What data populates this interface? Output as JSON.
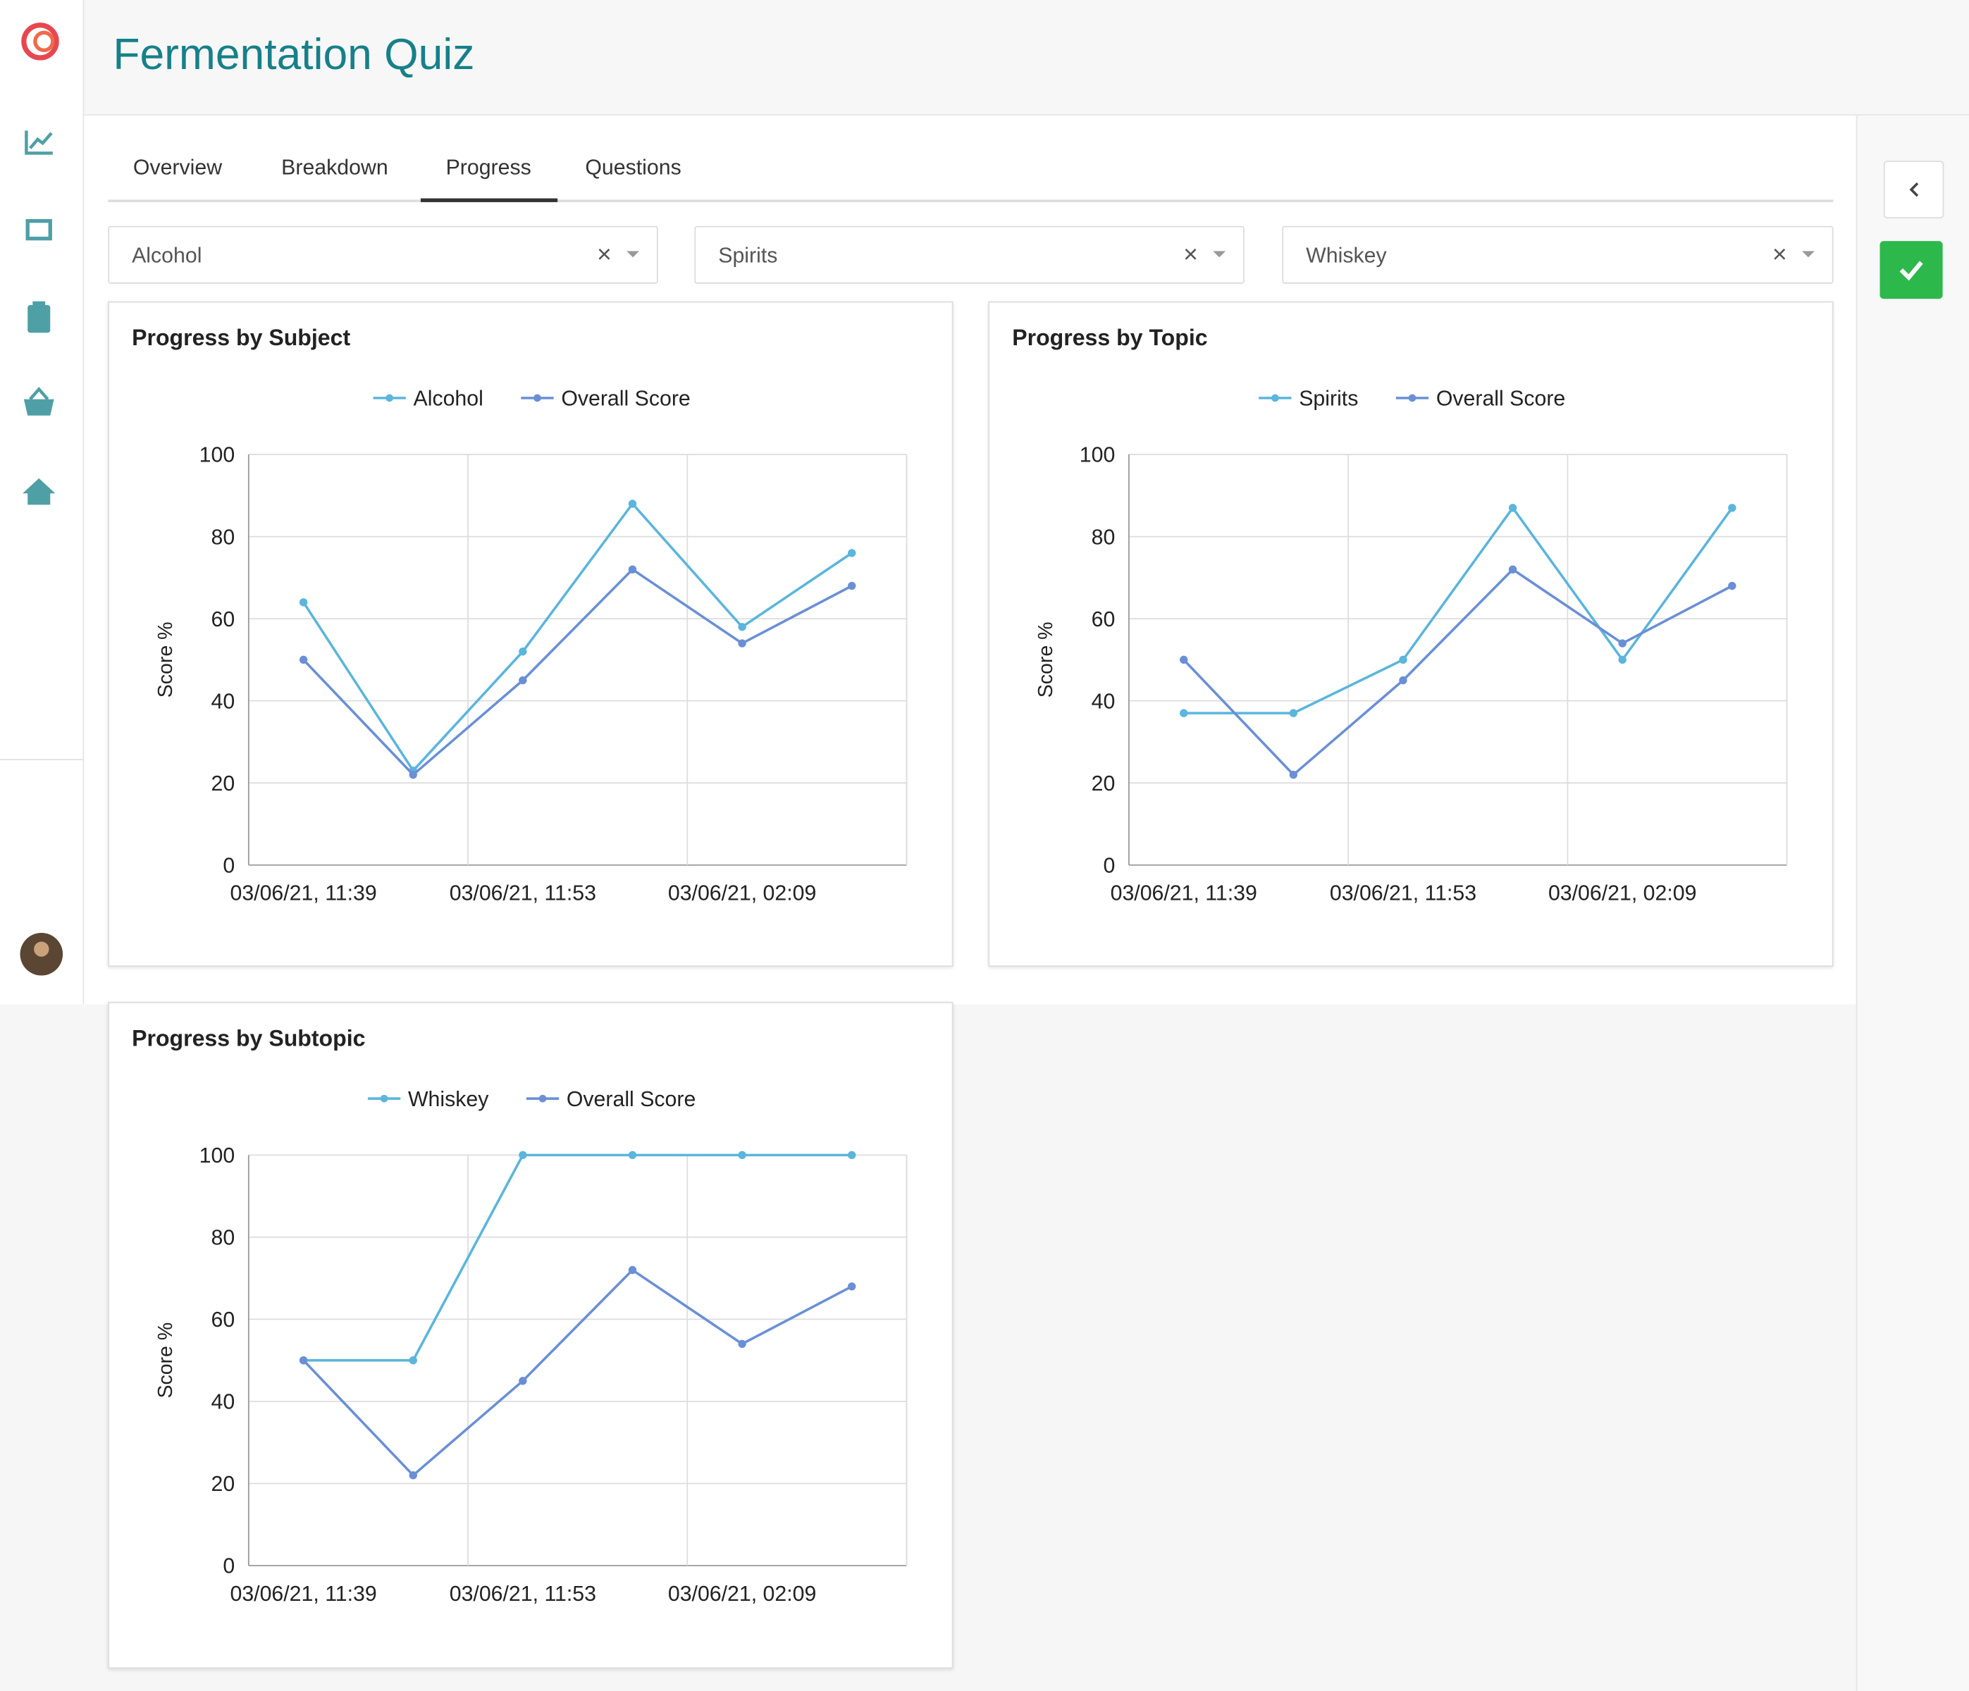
{
  "header": {
    "title": "Fermentation Quiz"
  },
  "tabs": [
    {
      "label": "Overview"
    },
    {
      "label": "Breakdown"
    },
    {
      "label": "Progress",
      "active": true
    },
    {
      "label": "Questions"
    }
  ],
  "filters": [
    "Alcohol",
    "Spirits",
    "Whiskey"
  ],
  "chart_data": [
    {
      "type": "line",
      "title": "Progress by Subject",
      "y_label": "Score %",
      "categories": [
        "03/06/21, 11:39",
        null,
        "03/06/21, 11:53",
        null,
        "03/06/21, 02:09",
        null
      ],
      "ylim": [
        0,
        100
      ],
      "yticks": [
        0,
        20,
        40,
        60,
        80,
        100
      ],
      "grid": true,
      "legend": "top",
      "series": [
        {
          "name": "Alcohol",
          "color": "#5bb5dc",
          "values": [
            64,
            23,
            52,
            88,
            58,
            76
          ]
        },
        {
          "name": "Overall Score",
          "color": "#6a8fd6",
          "values": [
            50,
            22,
            45,
            72,
            54,
            68
          ]
        }
      ]
    },
    {
      "type": "line",
      "title": "Progress by Topic",
      "y_label": "Score %",
      "categories": [
        "03/06/21, 11:39",
        null,
        "03/06/21, 11:53",
        null,
        "03/06/21, 02:09",
        null
      ],
      "ylim": [
        0,
        100
      ],
      "yticks": [
        0,
        20,
        40,
        60,
        80,
        100
      ],
      "grid": true,
      "legend": "top",
      "series": [
        {
          "name": "Spirits",
          "color": "#5bb5dc",
          "values": [
            37,
            37,
            50,
            87,
            50,
            87
          ]
        },
        {
          "name": "Overall Score",
          "color": "#6a8fd6",
          "values": [
            50,
            22,
            45,
            72,
            54,
            68
          ]
        }
      ]
    },
    {
      "type": "line",
      "title": "Progress by Subtopic",
      "y_label": "Score %",
      "categories": [
        "03/06/21, 11:39",
        null,
        "03/06/21, 11:53",
        null,
        "03/06/21, 02:09",
        null
      ],
      "ylim": [
        0,
        100
      ],
      "yticks": [
        0,
        20,
        40,
        60,
        80,
        100
      ],
      "grid": true,
      "legend": "top",
      "series": [
        {
          "name": "Whiskey",
          "color": "#5bb5dc",
          "values": [
            50,
            50,
            100,
            100,
            100,
            100
          ]
        },
        {
          "name": "Overall Score",
          "color": "#6a8fd6",
          "values": [
            50,
            22,
            45,
            72,
            54,
            68
          ]
        }
      ]
    }
  ]
}
